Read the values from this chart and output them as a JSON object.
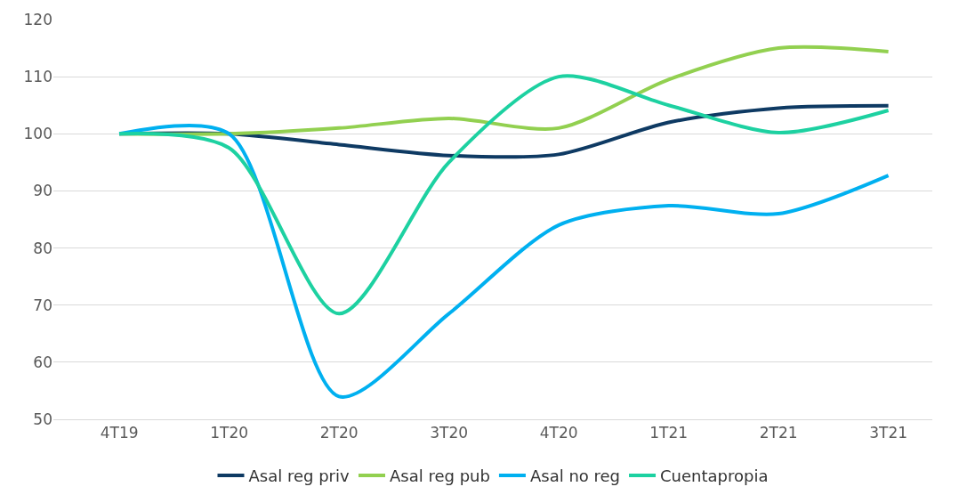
{
  "chart_data": {
    "type": "line",
    "categories": [
      "4T19",
      "1T20",
      "2T20",
      "3T20",
      "4T20",
      "1T21",
      "2T21",
      "3T21"
    ],
    "series": [
      {
        "name": "Asal reg priv",
        "color": "#0e3a63",
        "values": [
          100,
          100,
          98.1,
          96.2,
          96.4,
          102,
          104.5,
          104.9
        ]
      },
      {
        "name": "Asal reg pub",
        "color": "#92d050",
        "values": [
          100,
          100,
          101,
          102.7,
          101,
          109.5,
          115,
          114.4
        ]
      },
      {
        "name": "Asal no reg",
        "color": "#00b0f0",
        "values": [
          100,
          100,
          54,
          68.5,
          84,
          87.4,
          86,
          92.7
        ]
      },
      {
        "name": "Cuentapropia",
        "color": "#1dd1a1",
        "values": [
          100,
          97.5,
          68.5,
          95,
          110,
          105,
          100.2,
          104.1
        ]
      }
    ],
    "ylim": [
      50,
      120
    ],
    "yticks": [
      50,
      60,
      70,
      80,
      90,
      100,
      110,
      120
    ],
    "grid": "y",
    "legend": "bottom",
    "marker": "none",
    "line_style": "solid"
  }
}
